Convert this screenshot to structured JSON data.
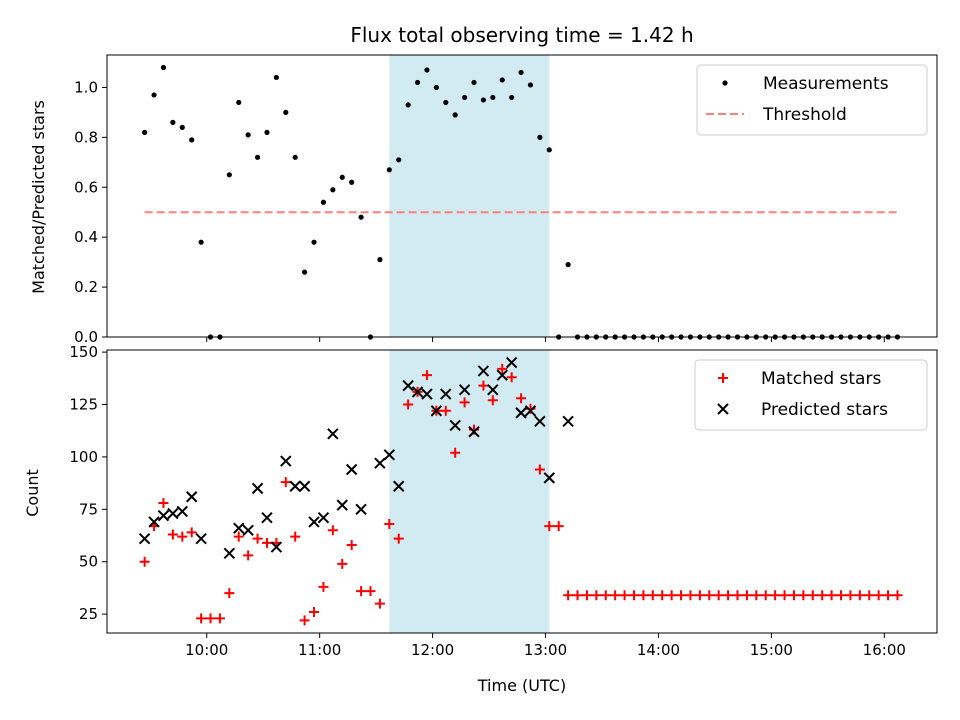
{
  "chart_data": {
    "title": "Flux total observing time = 1.42 h",
    "xlabel": "Time (UTC)",
    "x_ticks": [
      "10:00",
      "11:00",
      "12:00",
      "13:00",
      "14:00",
      "15:00",
      "16:00"
    ],
    "xlim": [
      "09:07",
      "16:28"
    ],
    "shaded_span": [
      "11:37",
      "13:02"
    ],
    "colors": {
      "shade": "#add8e6",
      "measurements": "#000000",
      "threshold": "#ff7f7f",
      "matched": "#ff0000",
      "predicted": "#000000"
    },
    "panels": [
      {
        "type": "scatter",
        "ylabel": "Matched/Predicted stars",
        "ylim": [
          0,
          1.13
        ],
        "y_ticks": [
          "0.0",
          "0.2",
          "0.4",
          "0.6",
          "0.8",
          "1.0"
        ],
        "legend_position": "top-right",
        "series": [
          {
            "name": "Measurements",
            "marker": "dot",
            "x": [
              "09:27",
              "09:32",
              "09:37",
              "09:42",
              "09:47",
              "09:52",
              "09:57",
              "10:02",
              "10:07",
              "10:12",
              "10:17",
              "10:22",
              "10:27",
              "10:32",
              "10:37",
              "10:42",
              "10:47",
              "10:52",
              "10:57",
              "11:02",
              "11:07",
              "11:12",
              "11:17",
              "11:22",
              "11:27",
              "11:32",
              "11:37",
              "11:42",
              "11:47",
              "11:52",
              "11:57",
              "12:02",
              "12:07",
              "12:12",
              "12:17",
              "12:22",
              "12:27",
              "12:32",
              "12:37",
              "12:42",
              "12:47",
              "12:52",
              "12:57",
              "13:02",
              "13:07",
              "13:12",
              "13:17",
              "13:22",
              "13:27",
              "13:32",
              "13:37",
              "13:42",
              "13:47",
              "13:52",
              "13:57",
              "14:02",
              "14:07",
              "14:12",
              "14:17",
              "14:22",
              "14:27",
              "14:32",
              "14:37",
              "14:42",
              "14:47",
              "14:52",
              "14:57",
              "15:02",
              "15:07",
              "15:12",
              "15:17",
              "15:22",
              "15:27",
              "15:32",
              "15:37",
              "15:42",
              "15:47",
              "15:52",
              "15:57",
              "16:02",
              "16:07"
            ],
            "y": [
              0.82,
              0.97,
              1.08,
              0.86,
              0.84,
              0.79,
              0.38,
              0.0,
              0.0,
              0.65,
              0.94,
              0.81,
              0.72,
              0.82,
              1.04,
              0.9,
              0.72,
              0.26,
              0.38,
              0.54,
              0.59,
              0.64,
              0.62,
              0.48,
              0.0,
              0.31,
              0.67,
              0.71,
              0.93,
              1.02,
              1.07,
              1.0,
              0.94,
              0.89,
              0.96,
              1.02,
              0.95,
              0.96,
              1.03,
              0.96,
              1.06,
              1.01,
              0.8,
              0.75,
              0.0,
              0.29,
              0.0,
              0.0,
              0.0,
              0.0,
              0.0,
              0.0,
              0.0,
              0.0,
              0.0,
              0.0,
              0.0,
              0.0,
              0.0,
              0.0,
              0.0,
              0.0,
              0.0,
              0.0,
              0.0,
              0.0,
              0.0,
              0.0,
              0.0,
              0.0,
              0.0,
              0.0,
              0.0,
              0.0,
              0.0,
              0.0,
              0.0,
              0.0,
              0.0,
              0.0,
              0.0
            ]
          },
          {
            "name": "Threshold",
            "marker": "dashed-line",
            "x": [
              "09:27",
              "16:07"
            ],
            "y": [
              0.5,
              0.5
            ]
          }
        ]
      },
      {
        "type": "scatter",
        "ylabel": "Count",
        "ylim": [
          16,
          151
        ],
        "y_ticks": [
          "25",
          "50",
          "75",
          "100",
          "125",
          "150"
        ],
        "legend_position": "top-right",
        "series": [
          {
            "name": "Matched stars",
            "marker": "plus",
            "x": [
              "09:27",
              "09:32",
              "09:37",
              "09:42",
              "09:47",
              "09:52",
              "09:57",
              "10:02",
              "10:07",
              "10:12",
              "10:17",
              "10:22",
              "10:27",
              "10:32",
              "10:37",
              "10:42",
              "10:47",
              "10:52",
              "10:57",
              "11:02",
              "11:07",
              "11:12",
              "11:17",
              "11:22",
              "11:27",
              "11:32",
              "11:37",
              "11:42",
              "11:47",
              "11:52",
              "11:57",
              "12:02",
              "12:07",
              "12:12",
              "12:17",
              "12:22",
              "12:27",
              "12:32",
              "12:37",
              "12:42",
              "12:47",
              "12:52",
              "12:57",
              "13:02",
              "13:07",
              "13:12",
              "13:17",
              "13:22",
              "13:27",
              "13:32",
              "13:37",
              "13:42",
              "13:47",
              "13:52",
              "13:57",
              "14:02",
              "14:07",
              "14:12",
              "14:17",
              "14:22",
              "14:27",
              "14:32",
              "14:37",
              "14:42",
              "14:47",
              "14:52",
              "14:57",
              "15:02",
              "15:07",
              "15:12",
              "15:17",
              "15:22",
              "15:27",
              "15:32",
              "15:37",
              "15:42",
              "15:47",
              "15:52",
              "15:57",
              "16:02",
              "16:07"
            ],
            "y": [
              50,
              67,
              78,
              63,
              62,
              64,
              23,
              23,
              23,
              35,
              62,
              53,
              61,
              59,
              59,
              88,
              62,
              22,
              26,
              38,
              65,
              49,
              58,
              36,
              36,
              30,
              68,
              61,
              125,
              131,
              139,
              122,
              122,
              102,
              126,
              113,
              134,
              127,
              142,
              138,
              128,
              123,
              94,
              67,
              67,
              34,
              34,
              34,
              34,
              34,
              34,
              34,
              34,
              34,
              34,
              34,
              34,
              34,
              34,
              34,
              34,
              34,
              34,
              34,
              34,
              34,
              34,
              34,
              34,
              34,
              34,
              34,
              34,
              34,
              34,
              34,
              34,
              34,
              34,
              34,
              34
            ]
          },
          {
            "name": "Predicted stars",
            "marker": "x",
            "x": [
              "09:27",
              "09:32",
              "09:37",
              "09:42",
              "09:47",
              "09:52",
              "09:57",
              "10:02",
              "10:07",
              "10:12",
              "10:17",
              "10:22",
              "10:27",
              "10:32",
              "10:37",
              "10:42",
              "10:47",
              "10:52",
              "10:57",
              "11:02",
              "11:07",
              "11:12",
              "11:17",
              "11:22",
              "11:27",
              "11:32",
              "11:37",
              "11:42",
              "11:47",
              "11:52",
              "11:57",
              "12:02",
              "12:07",
              "12:12",
              "12:17",
              "12:22",
              "12:27",
              "12:32",
              "12:37",
              "12:42",
              "12:47",
              "12:52",
              "12:57",
              "13:02",
              "13:12"
            ],
            "y": [
              61,
              69,
              72,
              73,
              74,
              81,
              61,
              null,
              null,
              54,
              66,
              65,
              85,
              71,
              57,
              98,
              86,
              86,
              69,
              71,
              111,
              77,
              94,
              75,
              null,
              97,
              101,
              86,
              134,
              131,
              130,
              122,
              130,
              115,
              132,
              112,
              141,
              132,
              139,
              145,
              121,
              122,
              117,
              90,
              117
            ]
          }
        ]
      }
    ]
  }
}
